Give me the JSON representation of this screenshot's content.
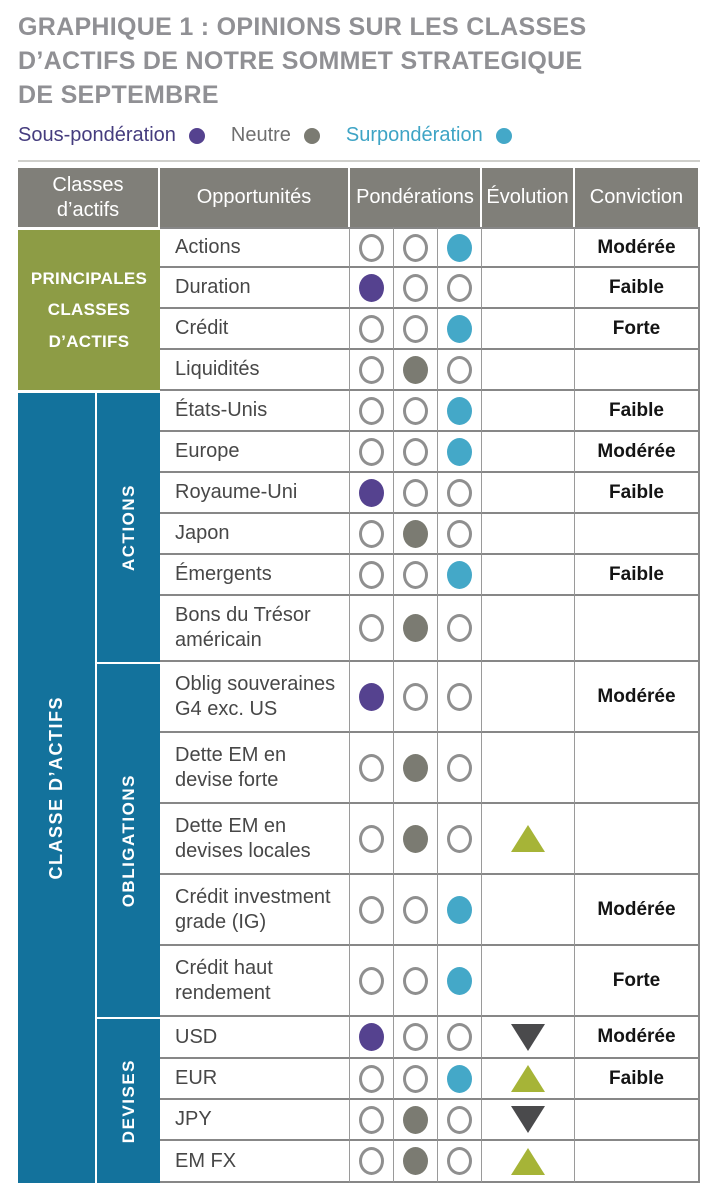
{
  "title": "GRAPHIQUE 1 : OPINIONS SUR LES CLASSES D’ACTIFS DE NOTRE SOMMET STRATEGIQUE DE SEPTEMBRE",
  "legend": {
    "items": [
      {
        "key": "sous",
        "label": "Sous-pondération",
        "dot_color": "#55428f",
        "text_color": "#453c7e"
      },
      {
        "key": "neutre",
        "label": "Neutre",
        "dot_color": "#7b7b72",
        "text_color": "#6f6f6f"
      },
      {
        "key": "sur",
        "label": "Surpondération",
        "dot_color": "#44a8c8",
        "text_color": "#3ea4c5"
      }
    ]
  },
  "table": {
    "headers": {
      "asset_classes": "Classes d’actifs",
      "opportunities": "Opportunités",
      "weightings": "Pondérations",
      "evolution": "Évolution",
      "conviction": "Conviction"
    },
    "groups": [
      {
        "id": "principales",
        "label": "PRINCIPALES CLASSES D’ACTIFS",
        "color": "#8d9c45"
      },
      {
        "id": "classe",
        "label": "CLASSE D’ACTIFS",
        "color": "#13729c",
        "subgroups": [
          {
            "id": "actions",
            "label": "ACTIONS"
          },
          {
            "id": "obligations",
            "label": "OBLIGATIONS"
          },
          {
            "id": "devises",
            "label": "DEVISES"
          }
        ]
      }
    ],
    "rows": [
      {
        "group": "principales",
        "subgroup": null,
        "opportunity": "Actions",
        "weighting": "sur",
        "evolution": null,
        "conviction": "Modérée"
      },
      {
        "group": "principales",
        "subgroup": null,
        "opportunity": "Duration",
        "weighting": "sous",
        "evolution": null,
        "conviction": "Faible"
      },
      {
        "group": "principales",
        "subgroup": null,
        "opportunity": "Crédit",
        "weighting": "sur",
        "evolution": null,
        "conviction": "Forte"
      },
      {
        "group": "principales",
        "subgroup": null,
        "opportunity": "Liquidités",
        "weighting": "neutre",
        "evolution": null,
        "conviction": ""
      },
      {
        "group": "classe",
        "subgroup": "actions",
        "opportunity": "États-Unis",
        "weighting": "sur",
        "evolution": null,
        "conviction": "Faible"
      },
      {
        "group": "classe",
        "subgroup": "actions",
        "opportunity": "Europe",
        "weighting": "sur",
        "evolution": null,
        "conviction": "Modérée"
      },
      {
        "group": "classe",
        "subgroup": "actions",
        "opportunity": "Royaume-Uni",
        "weighting": "sous",
        "evolution": null,
        "conviction": "Faible"
      },
      {
        "group": "classe",
        "subgroup": "actions",
        "opportunity": "Japon",
        "weighting": "neutre",
        "evolution": null,
        "conviction": ""
      },
      {
        "group": "classe",
        "subgroup": "actions",
        "opportunity": "Émergents",
        "weighting": "sur",
        "evolution": null,
        "conviction": "Faible"
      },
      {
        "group": "classe",
        "subgroup": "actions",
        "opportunity": "Bons du Trésor américain",
        "weighting": "neutre",
        "evolution": null,
        "conviction": ""
      },
      {
        "group": "classe",
        "subgroup": "obligations",
        "opportunity": "Oblig souveraines G4 exc. US",
        "weighting": "sous",
        "evolution": null,
        "conviction": "Modérée"
      },
      {
        "group": "classe",
        "subgroup": "obligations",
        "opportunity": "Dette EM en devise forte",
        "weighting": "neutre",
        "evolution": null,
        "conviction": ""
      },
      {
        "group": "classe",
        "subgroup": "obligations",
        "opportunity": "Dette EM en devises locales",
        "weighting": "neutre",
        "evolution": "up",
        "conviction": ""
      },
      {
        "group": "classe",
        "subgroup": "obligations",
        "opportunity": "Crédit investment grade (IG)",
        "weighting": "sur",
        "evolution": null,
        "conviction": "Modérée"
      },
      {
        "group": "classe",
        "subgroup": "obligations",
        "opportunity": "Crédit haut rendement",
        "weighting": "sur",
        "evolution": null,
        "conviction": "Forte"
      },
      {
        "group": "classe",
        "subgroup": "devises",
        "opportunity": "USD",
        "weighting": "sous",
        "evolution": "down",
        "conviction": "Modérée"
      },
      {
        "group": "classe",
        "subgroup": "devises",
        "opportunity": "EUR",
        "weighting": "sur",
        "evolution": "up",
        "conviction": "Faible"
      },
      {
        "group": "classe",
        "subgroup": "devises",
        "opportunity": "JPY",
        "weighting": "neutre",
        "evolution": "down",
        "conviction": ""
      },
      {
        "group": "classe",
        "subgroup": "devises",
        "opportunity": "EM FX",
        "weighting": "neutre",
        "evolution": "up",
        "conviction": ""
      }
    ]
  },
  "colors": {
    "title": "#909094",
    "header_bg": "#807f79",
    "olive_group": "#8d9c45",
    "blue_group": "#13729c",
    "fill_sous": "#55428f",
    "fill_neutre": "#7b7b72",
    "fill_sur": "#44a8c8",
    "circle_outline": "#8f8f8f",
    "triangle_up": "#a6b437",
    "triangle_down": "#4a4a4c",
    "grid_line": "#878787",
    "opportunity_text": "#474747",
    "conviction_text": "#141414"
  }
}
